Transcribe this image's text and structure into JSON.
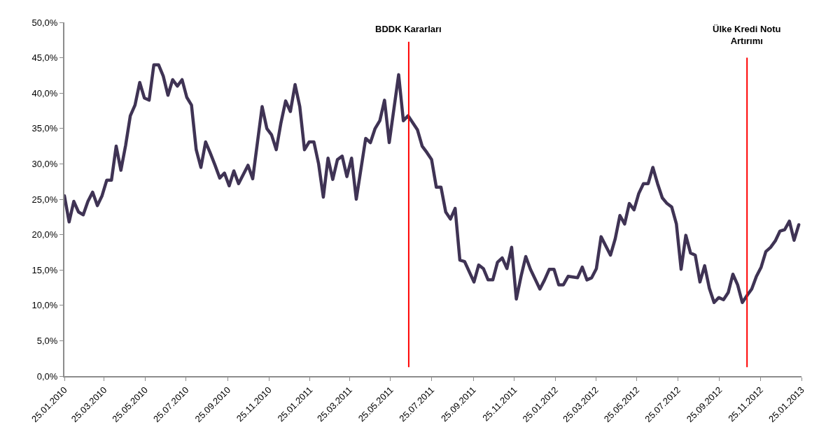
{
  "chart_data": {
    "type": "line",
    "x": [
      "2010-01-25",
      "2010-02-01",
      "2010-02-08",
      "2010-02-15",
      "2010-02-22",
      "2010-03-01",
      "2010-03-08",
      "2010-03-15",
      "2010-03-22",
      "2010-03-29",
      "2010-04-05",
      "2010-04-12",
      "2010-04-19",
      "2010-04-26",
      "2010-05-03",
      "2010-05-10",
      "2010-05-17",
      "2010-05-24",
      "2010-05-31",
      "2010-06-07",
      "2010-06-14",
      "2010-06-21",
      "2010-06-28",
      "2010-07-05",
      "2010-07-12",
      "2010-07-19",
      "2010-07-26",
      "2010-08-02",
      "2010-08-09",
      "2010-08-16",
      "2010-08-23",
      "2010-08-30",
      "2010-09-06",
      "2010-09-13",
      "2010-09-20",
      "2010-09-27",
      "2010-10-04",
      "2010-10-11",
      "2010-10-25",
      "2010-11-01",
      "2010-11-15",
      "2010-11-22",
      "2010-11-29",
      "2010-12-06",
      "2010-12-13",
      "2010-12-20",
      "2010-12-27",
      "2011-01-03",
      "2011-01-10",
      "2011-01-17",
      "2011-01-24",
      "2011-01-31",
      "2011-02-07",
      "2011-02-14",
      "2011-02-21",
      "2011-02-28",
      "2011-03-07",
      "2011-03-14",
      "2011-03-21",
      "2011-03-28",
      "2011-04-04",
      "2011-04-18",
      "2011-04-25",
      "2011-05-02",
      "2011-05-09",
      "2011-05-16",
      "2011-05-23",
      "2011-06-06",
      "2011-06-13",
      "2011-06-20",
      "2011-07-04",
      "2011-07-11",
      "2011-07-18",
      "2011-07-25",
      "2011-08-01",
      "2011-08-08",
      "2011-08-15",
      "2011-08-22",
      "2011-08-29",
      "2011-09-05",
      "2011-09-12",
      "2011-09-26",
      "2011-10-03",
      "2011-10-10",
      "2011-10-17",
      "2011-10-24",
      "2011-10-31",
      "2011-11-07",
      "2011-11-14",
      "2011-11-21",
      "2011-11-28",
      "2011-12-05",
      "2011-12-12",
      "2011-12-19",
      "2012-01-02",
      "2012-01-09",
      "2012-01-16",
      "2012-01-23",
      "2012-01-30",
      "2012-02-06",
      "2012-02-13",
      "2012-02-27",
      "2012-03-05",
      "2012-03-12",
      "2012-03-19",
      "2012-03-26",
      "2012-04-02",
      "2012-04-16",
      "2012-04-23",
      "2012-04-30",
      "2012-05-07",
      "2012-05-14",
      "2012-05-21",
      "2012-05-28",
      "2012-06-04",
      "2012-06-11",
      "2012-06-18",
      "2012-06-25",
      "2012-07-02",
      "2012-07-09",
      "2012-07-16",
      "2012-07-23",
      "2012-07-30",
      "2012-08-06",
      "2012-08-13",
      "2012-08-20",
      "2012-08-27",
      "2012-09-03",
      "2012-09-10",
      "2012-09-17",
      "2012-09-24",
      "2012-10-01",
      "2012-10-08",
      "2012-10-15",
      "2012-10-22",
      "2012-10-29",
      "2012-11-05",
      "2012-11-12",
      "2012-11-19",
      "2012-11-26",
      "2012-12-03",
      "2012-12-10",
      "2012-12-17",
      "2012-12-24",
      "2012-12-31",
      "2013-01-07",
      "2013-01-14",
      "2013-01-21"
    ],
    "series": [
      {
        "color": "#3f3354",
        "values": [
          25.5,
          21.8,
          24.7,
          23.2,
          22.8,
          24.7,
          26.0,
          24.1,
          25.5,
          27.7,
          27.7,
          32.5,
          29.1,
          32.6,
          36.8,
          38.3,
          41.5,
          39.3,
          39.0,
          44.0,
          44.0,
          42.4,
          39.7,
          41.9,
          41.0,
          41.9,
          39.4,
          38.3,
          32.0,
          29.5,
          33.1,
          31.5,
          29.8,
          28.0,
          28.7,
          26.9,
          29.0,
          27.2,
          29.8,
          27.9,
          38.1,
          35.0,
          34.1,
          32.0,
          35.8,
          38.9,
          37.4,
          41.2,
          38.1,
          32.0,
          33.1,
          33.1,
          30.0,
          25.3,
          30.8,
          27.8,
          30.6,
          31.1,
          28.2,
          30.8,
          25.0,
          33.6,
          33.0,
          35.0,
          36.1,
          39.0,
          33.0,
          42.6,
          36.1,
          36.8,
          34.8,
          32.5,
          31.6,
          30.6,
          26.7,
          26.7,
          23.2,
          22.2,
          23.7,
          16.4,
          16.2,
          13.3,
          15.7,
          15.2,
          13.6,
          13.6,
          16.1,
          16.7,
          15.2,
          18.2,
          10.9,
          14.1,
          16.9,
          15.1,
          12.3,
          13.6,
          15.1,
          15.1,
          12.9,
          12.9,
          14.1,
          13.9,
          15.4,
          13.6,
          13.9,
          15.2,
          19.7,
          17.1,
          19.4,
          22.7,
          21.5,
          24.4,
          23.5,
          25.8,
          27.2,
          27.2,
          29.5,
          27.2,
          25.2,
          24.4,
          23.9,
          21.5,
          15.1,
          19.9,
          17.4,
          17.1,
          13.3,
          15.6,
          12.4,
          10.4,
          11.1,
          10.8,
          11.8,
          14.4,
          12.9,
          10.4,
          11.4,
          12.3,
          14.1,
          15.4,
          17.6,
          18.2,
          19.1,
          20.5,
          20.7,
          21.9,
          19.2,
          21.4
        ]
      }
    ],
    "xlim": [
      "2010-01-25",
      "2013-01-25"
    ],
    "xticks": [
      {
        "value": "2010-01-25",
        "label": "25.01.2010"
      },
      {
        "value": "2010-03-25",
        "label": "25.03.2010"
      },
      {
        "value": "2010-05-25",
        "label": "25.05.2010"
      },
      {
        "value": "2010-07-25",
        "label": "25.07.2010"
      },
      {
        "value": "2010-09-25",
        "label": "25.09.2010"
      },
      {
        "value": "2010-11-25",
        "label": "25.11.2010"
      },
      {
        "value": "2011-01-25",
        "label": "25.01.2011"
      },
      {
        "value": "2011-03-25",
        "label": "25.03.2011"
      },
      {
        "value": "2011-05-25",
        "label": "25.05.2011"
      },
      {
        "value": "2011-07-25",
        "label": "25.07.2011"
      },
      {
        "value": "2011-09-25",
        "label": "25.09.2011"
      },
      {
        "value": "2011-11-25",
        "label": "25.11.2011"
      },
      {
        "value": "2012-01-25",
        "label": "25.01.2012"
      },
      {
        "value": "2012-03-25",
        "label": "25.03.2012"
      },
      {
        "value": "2012-05-25",
        "label": "25.05.2012"
      },
      {
        "value": "2012-07-25",
        "label": "25.07.2012"
      },
      {
        "value": "2012-09-25",
        "label": "25.09.2012"
      },
      {
        "value": "2012-11-25",
        "label": "25.11.2012"
      },
      {
        "value": "2013-01-25",
        "label": "25.01.2013"
      }
    ],
    "ylim": [
      0,
      50
    ],
    "yticks": [
      {
        "value": 0,
        "label": "0,0%"
      },
      {
        "value": 5,
        "label": "5,0%"
      },
      {
        "value": 10,
        "label": "10,0%"
      },
      {
        "value": 15,
        "label": "15,0%"
      },
      {
        "value": 20,
        "label": "20,0%"
      },
      {
        "value": 25,
        "label": "25,0%"
      },
      {
        "value": 30,
        "label": "30,0%"
      },
      {
        "value": 35,
        "label": "35,0%"
      },
      {
        "value": 40,
        "label": "40,0%"
      },
      {
        "value": 45,
        "label": "45,0%"
      },
      {
        "value": 50,
        "label": "50,0%"
      }
    ],
    "ref_lines": [
      {
        "axis": "x",
        "value": "2011-06-21",
        "label": "BDDK Kararları",
        "color": "#ff0000"
      },
      {
        "axis": "x",
        "value": "2012-11-05",
        "label": "Ülke Kredi Notu\nArtırımı",
        "color": "#ff0000"
      }
    ],
    "marker": "none",
    "line_style": "solid"
  }
}
